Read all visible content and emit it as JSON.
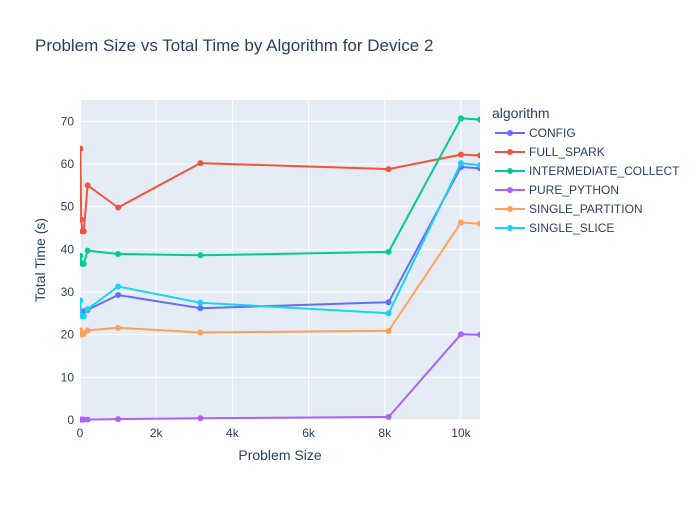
{
  "chart_data": {
    "type": "line",
    "title": "Problem Size vs Total Time by Algorithm for Device 2",
    "xlabel": "Problem Size",
    "ylabel": "Total Time (s)",
    "xlim": [
      0,
      10500
    ],
    "ylim": [
      0,
      75
    ],
    "x_ticks": [
      0,
      2000,
      4000,
      6000,
      8000,
      10000
    ],
    "x_tick_labels": [
      "0",
      "2k",
      "4k",
      "6k",
      "8k",
      "10k"
    ],
    "y_ticks": [
      0,
      10,
      20,
      30,
      40,
      50,
      60,
      70
    ],
    "y_tick_labels": [
      "0",
      "10",
      "20",
      "30",
      "40",
      "50",
      "60",
      "70"
    ],
    "grid": true,
    "legend_title": "algorithm",
    "legend_position": "right",
    "plot_bg": "#E5ECF6",
    "series": [
      {
        "name": "CONFIG",
        "color": "#636EFA",
        "x": [
          10,
          31,
          62,
          100,
          200,
          1000,
          3160,
          8100,
          10000,
          10500
        ],
        "y": [
          25.0,
          24.8,
          24.8,
          25.5,
          25.8,
          29.3,
          26.2,
          27.6,
          59.3,
          59.0
        ]
      },
      {
        "name": "FULL_SPARK",
        "color": "#EF553B",
        "x": [
          10,
          31,
          62,
          100,
          200,
          1000,
          3160,
          8100,
          10000,
          10500
        ],
        "y": [
          63.6,
          47.0,
          44.2,
          44.2,
          55.0,
          49.8,
          60.2,
          58.8,
          62.2,
          62.0
        ]
      },
      {
        "name": "INTERMEDIATE_COLLECT",
        "color": "#00CC96",
        "x": [
          10,
          31,
          62,
          100,
          200,
          1000,
          3160,
          8100,
          10000,
          10500
        ],
        "y": [
          38.5,
          36.8,
          36.6,
          36.6,
          39.7,
          38.9,
          38.6,
          39.4,
          70.7,
          70.4
        ]
      },
      {
        "name": "PURE_PYTHON",
        "color": "#AB63FA",
        "x": [
          10,
          31,
          62,
          100,
          200,
          1000,
          3160,
          8100,
          10000,
          10500
        ],
        "y": [
          0.1,
          0.1,
          0.1,
          0.1,
          0.1,
          0.2,
          0.4,
          0.7,
          20.1,
          20.0
        ]
      },
      {
        "name": "SINGLE_PARTITION",
        "color": "#FFA15A",
        "x": [
          10,
          31,
          62,
          100,
          200,
          1000,
          3160,
          8100,
          10000,
          10500
        ],
        "y": [
          21.0,
          20.3,
          20.0,
          20.3,
          21.0,
          21.6,
          20.5,
          20.9,
          46.3,
          46.0
        ]
      },
      {
        "name": "SINGLE_SLICE",
        "color": "#19D3F3",
        "x": [
          10,
          31,
          62,
          100,
          200,
          1000,
          3160,
          8100,
          10000,
          10500
        ],
        "y": [
          28.0,
          24.5,
          24.3,
          24.3,
          26.0,
          31.3,
          27.5,
          25.0,
          60.2,
          59.7
        ]
      }
    ]
  }
}
